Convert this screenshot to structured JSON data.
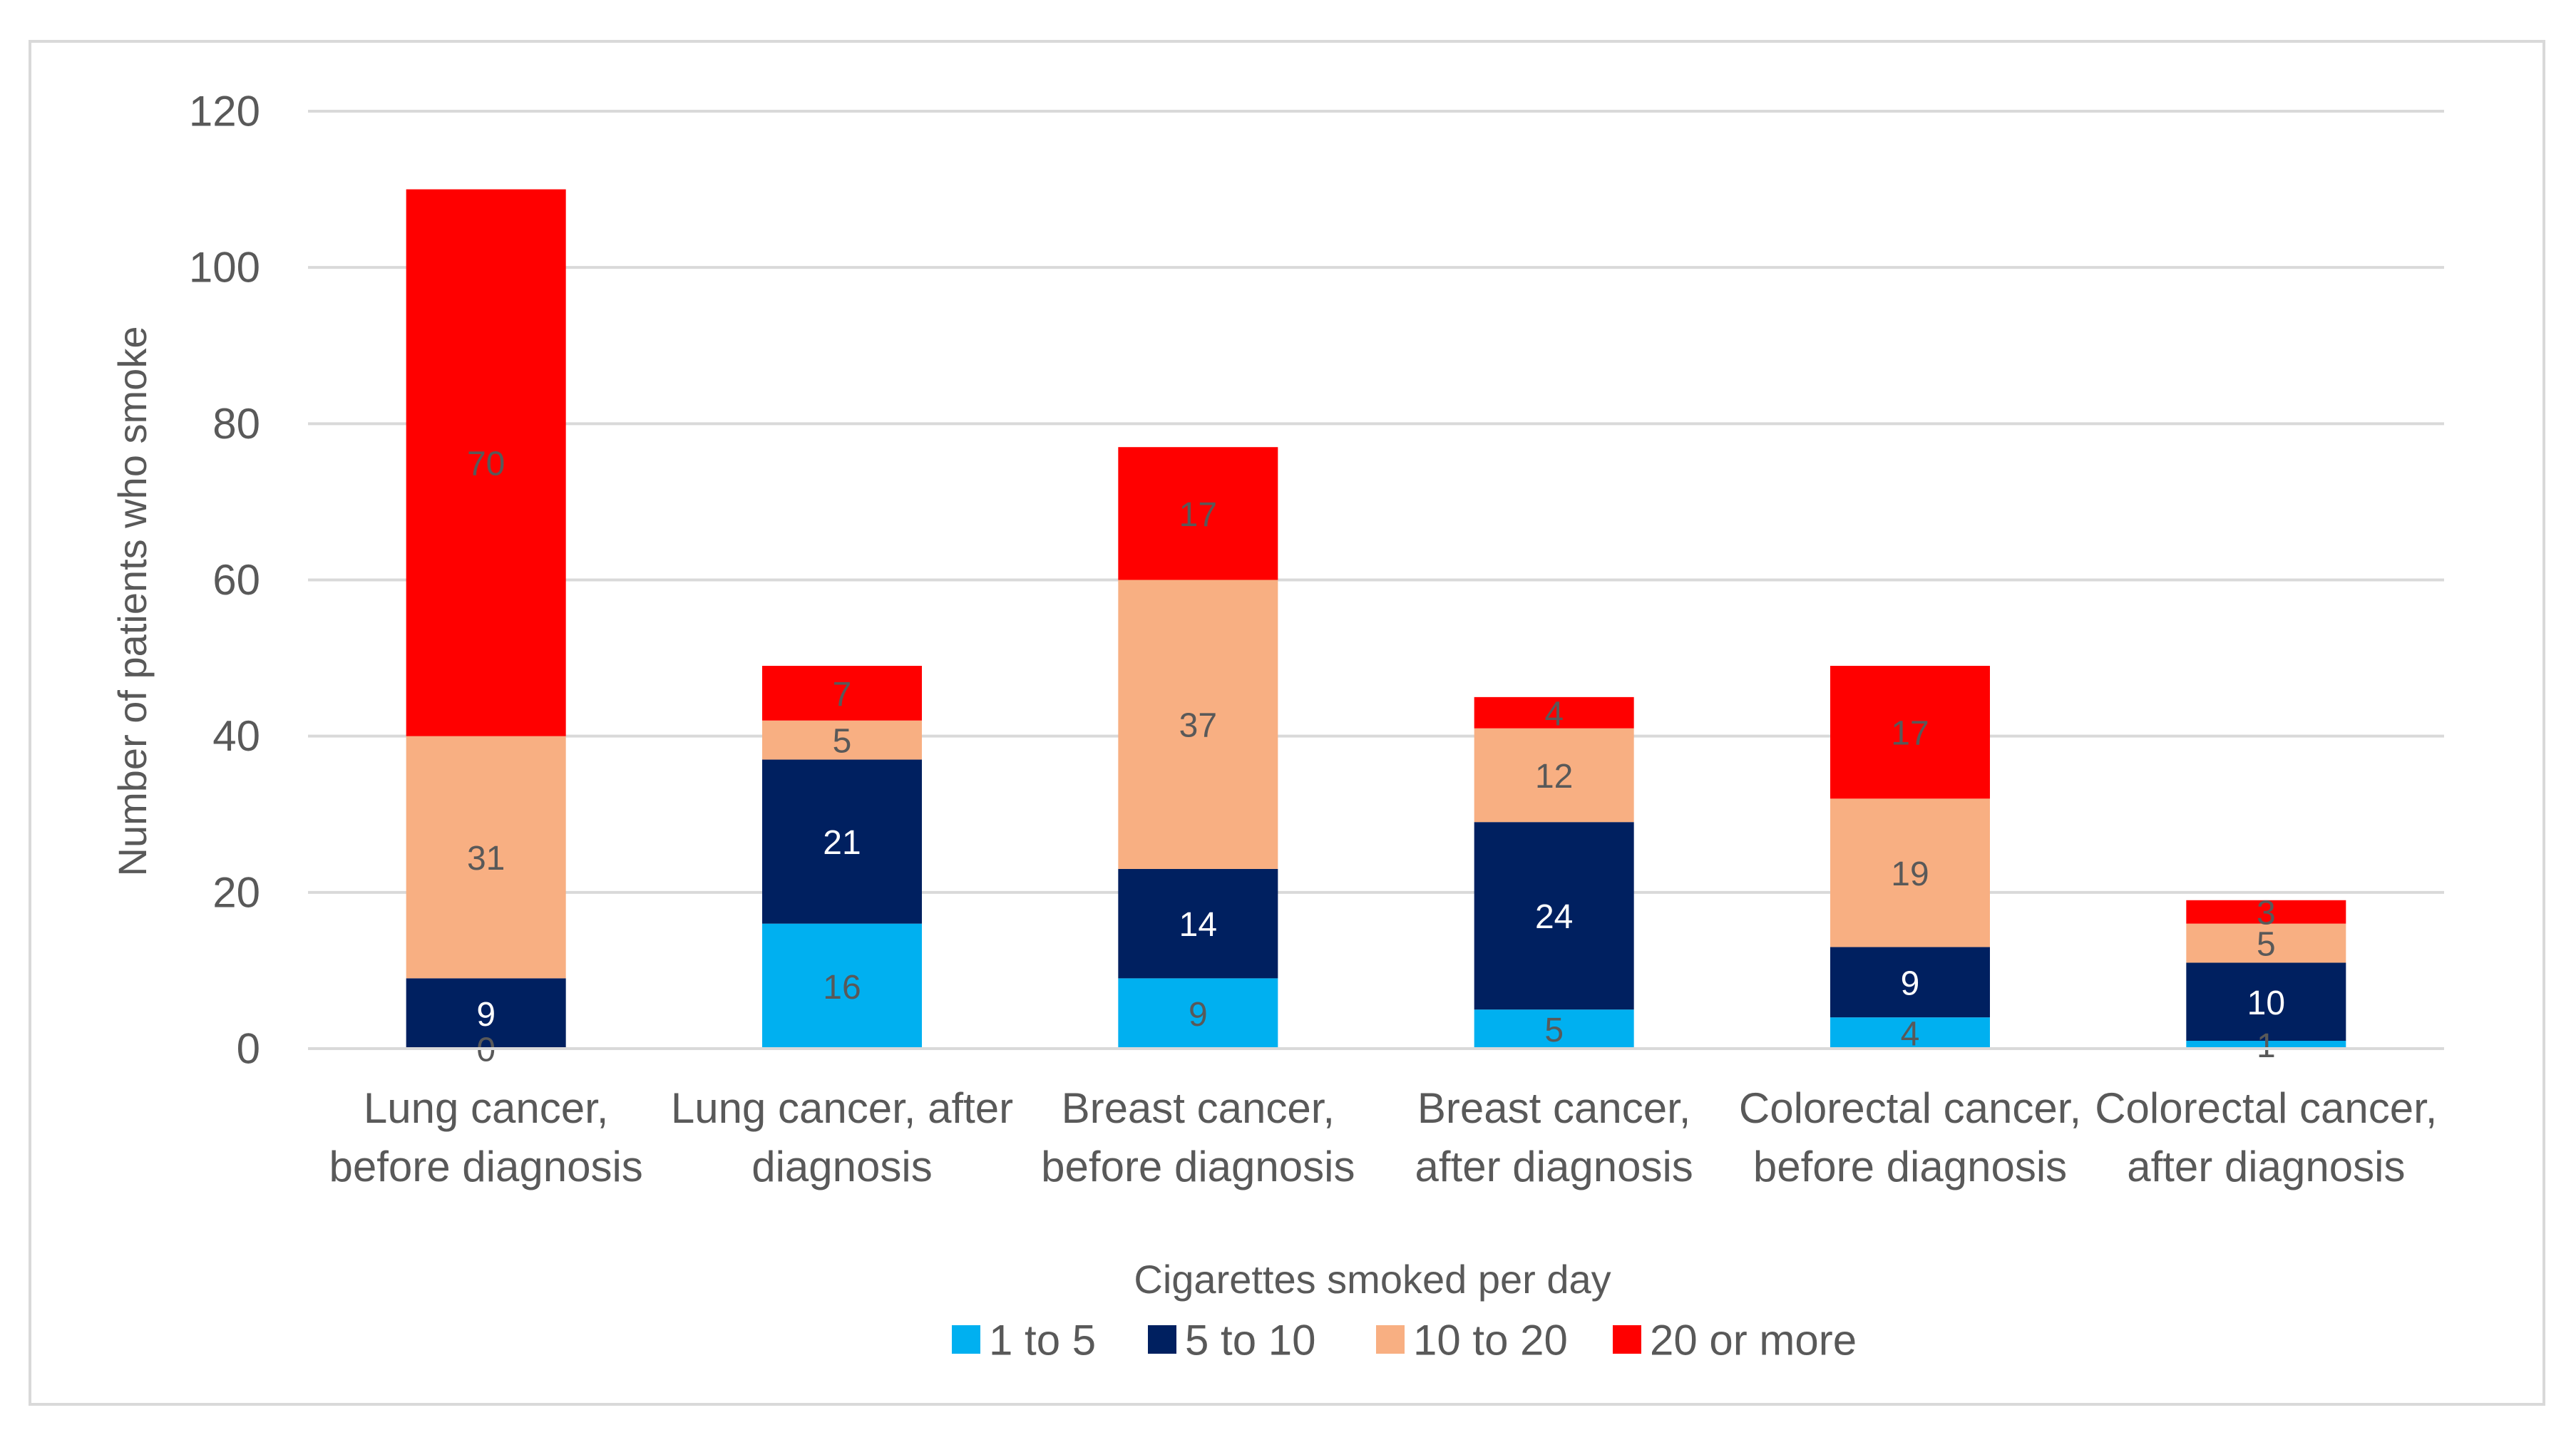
{
  "chart_data": {
    "type": "bar",
    "stacked": true,
    "title": "",
    "xlabel": "Cigarettes smoked per day",
    "ylabel": "Number of patients who smoke",
    "ylim": [
      0,
      120
    ],
    "yticks": [
      0,
      20,
      40,
      60,
      80,
      100,
      120
    ],
    "grid": true,
    "legend": "bottom",
    "categories": [
      [
        "Lung cancer,",
        "before diagnosis"
      ],
      [
        "Lung cancer, after",
        "diagnosis"
      ],
      [
        "Breast cancer,",
        "before diagnosis"
      ],
      [
        "Breast cancer,",
        "after diagnosis"
      ],
      [
        "Colorectal cancer,",
        "before diagnosis"
      ],
      [
        "Colorectal cancer,",
        "after diagnosis"
      ]
    ],
    "series": [
      {
        "name": "1 to 5",
        "color": "#00B0F0",
        "label_color": "#595959",
        "values": [
          0,
          16,
          9,
          5,
          4,
          1
        ]
      },
      {
        "name": "5 to 10",
        "color": "#002060",
        "label_color": "#FFFFFF",
        "values": [
          9,
          21,
          14,
          24,
          9,
          10
        ]
      },
      {
        "name": "10 to 20",
        "color": "#F8AF82",
        "label_color": "#595959",
        "values": [
          31,
          5,
          37,
          12,
          19,
          5
        ]
      },
      {
        "name": "20 or more",
        "color": "#FF0000",
        "label_color": "#595959",
        "values": [
          70,
          7,
          17,
          4,
          17,
          3
        ]
      }
    ]
  }
}
